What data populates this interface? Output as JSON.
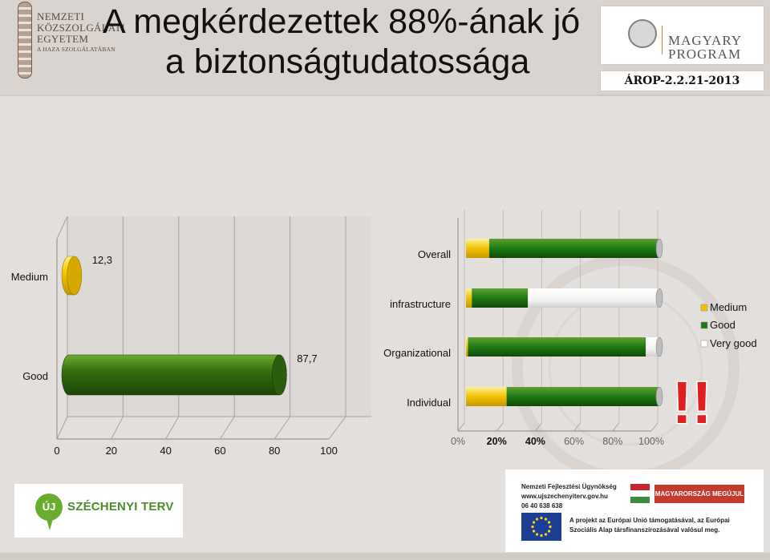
{
  "header": {
    "title_line1": "A megkérdezettek 88%-ának jó",
    "title_line2": "a biztonságtudatossága",
    "nke_logo": {
      "line1": "NEMZETI",
      "line2": "KÖZSZOLGÁLATI",
      "line3": "EGYETEM",
      "line4": "A HAZA SZOLGÁLATÁBAN"
    },
    "magyary_logo": {
      "line1": "MAGYARY",
      "line2": "PROGRAM"
    },
    "program_code": "ÁROP-2.2.21-2013"
  },
  "chart_data": [
    {
      "type": "bar",
      "orientation": "horizontal",
      "categories": [
        "Medium",
        "Good"
      ],
      "values": [
        12.3,
        87.7
      ],
      "value_labels": [
        "12,3",
        "87,7"
      ],
      "xlim": [
        0,
        100
      ],
      "xticks": [
        "0",
        "20",
        "40",
        "60",
        "80",
        "100"
      ],
      "colors": [
        "#f2c200",
        "#2f6f10"
      ],
      "style": "3d-cylinder"
    },
    {
      "type": "bar",
      "orientation": "horizontal",
      "stacked_percent": true,
      "categories": [
        "Overall",
        "infrastructure",
        "Organizational",
        "Individual"
      ],
      "series": [
        {
          "name": "Medium",
          "values": [
            12,
            3,
            1,
            21
          ],
          "color": "#f2c200"
        },
        {
          "name": "Good",
          "values": [
            88,
            29,
            92,
            79
          ],
          "color": "#1e7a14"
        },
        {
          "name": "Very good",
          "values": [
            0,
            68,
            7,
            0
          ],
          "color": "#ffffff"
        }
      ],
      "xticks": [
        "0%",
        "20%",
        "40%",
        "60%",
        "80%",
        "100%"
      ],
      "legend_position": "right",
      "annotation": "!!"
    }
  ],
  "footer": {
    "szechenyi_icon": "ÚJ",
    "szechenyi_text": "SZÉCHENYI TERV",
    "agency_line1": "Nemzeti Fejlesztési Ügynökség",
    "agency_line2": "www.ujszechenyiterv.gov.hu",
    "agency_line3": "06 40 638 638",
    "hu_banner": "MAGYARORSZÁG MEGÚJUL",
    "eu_note": "A projekt az Európai Unió támogatásával, az Európai Szociális Alap társfinanszírozásával valósul meg."
  }
}
